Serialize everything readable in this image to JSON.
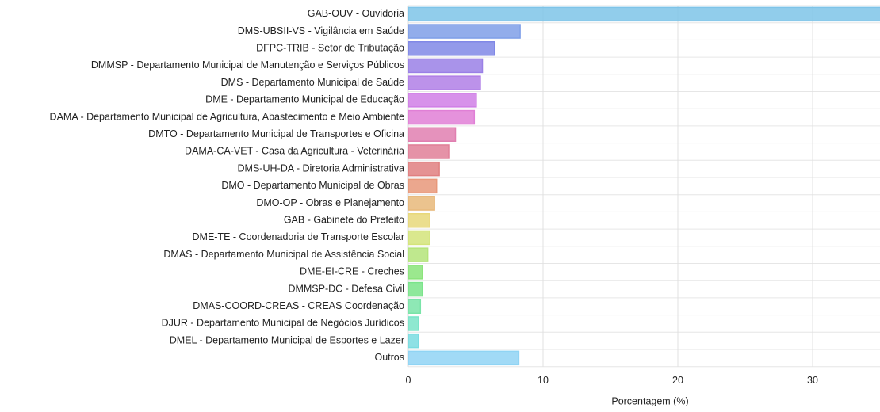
{
  "chart_data": {
    "type": "bar",
    "orientation": "horizontal",
    "categories": [
      "GAB-OUV - Ouvidoria",
      "DMS-UBSII-VS - Vigilância em Saúde",
      "DFPC-TRIB - Setor de Tributação",
      "DMMSP - Departamento Municipal de Manutenção e Serviços Públicos",
      "DMS - Departamento Municipal de Saúde",
      "DME - Departamento Municipal de Educação",
      "DAMA - Departamento Municipal de Agricultura, Abastecimento e Meio Ambiente",
      "DMTO - Departamento Municipal de Transportes e Oficina",
      "DAMA-CA-VET - Casa da Agricultura - Veterinária",
      "DMS-UH-DA - Diretoria Administrativa",
      "DMO - Departamento Municipal de Obras",
      "DMO-OP - Obras e Planejamento",
      "GAB - Gabinete do Prefeito",
      "DME-TE - Coordenadoria de Transporte Escolar",
      "DMAS - Departamento Municipal de Assistência Social",
      "DME-EI-CRE - Creches",
      "DMMSP-DC - Defesa Civil",
      "DMAS-COORD-CREAS - CREAS Coordenação",
      "DJUR - Departamento Municipal de Negócios Jurídicos",
      "DMEL - Departamento Municipal de Esportes e Lazer",
      "Outros"
    ],
    "values": [
      36,
      8.3,
      6.4,
      5.5,
      5.35,
      5.05,
      4.9,
      3.5,
      3.0,
      2.3,
      2.1,
      1.95,
      1.6,
      1.6,
      1.45,
      1.05,
      1.05,
      0.9,
      0.75,
      0.75,
      8.2
    ],
    "colors": [
      "#7ec4e8",
      "#7f9fe8",
      "#8088e6",
      "#9a80e6",
      "#b07fe6",
      "#d07fe6",
      "#e07fd6",
      "#e07fb0",
      "#e07f98",
      "#e07f80",
      "#e8987a",
      "#e8b87a",
      "#e8d87a",
      "#d4e47a",
      "#b4e47a",
      "#8ae47a",
      "#7ae48a",
      "#7ae4a8",
      "#7ae4c8",
      "#7adce0",
      "#90d4f4"
    ],
    "xlabel": "Porcentagem (%)",
    "xlim": [
      0,
      35
    ],
    "xticks": [
      0,
      10,
      20,
      30
    ],
    "grid": true
  }
}
